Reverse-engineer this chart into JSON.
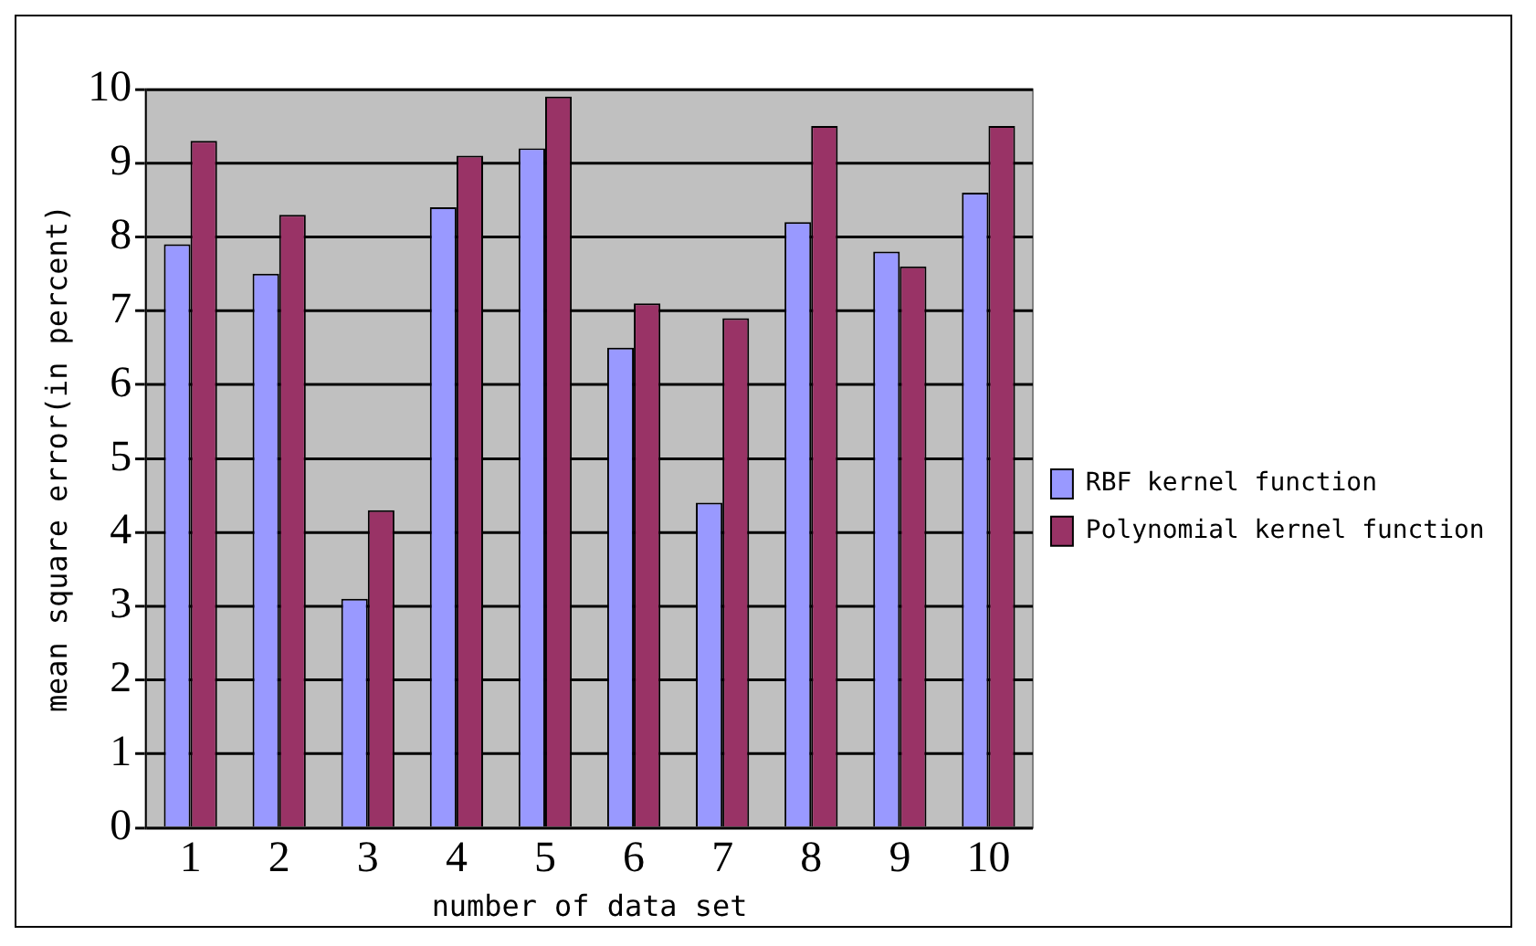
{
  "chart_data": {
    "type": "bar",
    "xlabel": "number of data set",
    "ylabel": "mean square error(in percent)",
    "categories": [
      "1",
      "2",
      "3",
      "4",
      "5",
      "6",
      "7",
      "8",
      "9",
      "10"
    ],
    "series": [
      {
        "name": "RBF kernel function",
        "color": "#9999ff",
        "values": [
          7.9,
          7.5,
          3.1,
          8.4,
          9.2,
          6.5,
          4.4,
          8.2,
          7.8,
          8.6
        ]
      },
      {
        "name": "Polynomial kernel function",
        "color": "#993366",
        "values": [
          9.3,
          8.3,
          4.3,
          9.1,
          9.9,
          7.1,
          6.9,
          9.5,
          7.6,
          9.5
        ]
      }
    ],
    "ylim": [
      0,
      10
    ],
    "yticks": [
      0,
      1,
      2,
      3,
      4,
      5,
      6,
      7,
      8,
      9,
      10
    ],
    "grid": "y",
    "legend": "right"
  }
}
